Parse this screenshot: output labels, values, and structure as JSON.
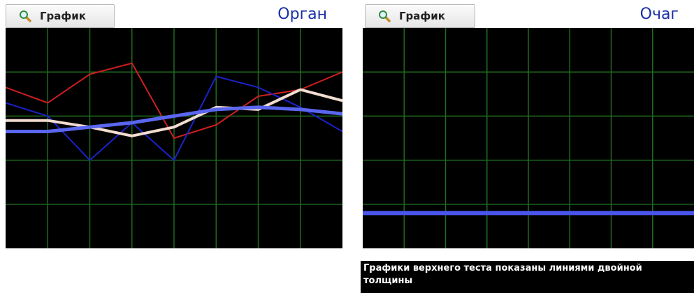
{
  "left_panel": {
    "button_label": "График",
    "title": "Орган"
  },
  "right_panel": {
    "button_label": "График",
    "title": "Очаг"
  },
  "note": "Графики верхнего теста показаны линиями двойной толщины",
  "colors": {
    "background": "#000000",
    "grid": "#1e6b1e",
    "title": "#1a2fa6"
  },
  "chart_data": [
    {
      "type": "line",
      "grid": true,
      "legend": "none",
      "x": [
        0,
        1,
        2,
        3,
        4,
        5,
        6,
        7,
        8
      ],
      "xlim": [
        0,
        8
      ],
      "ylim": [
        0,
        5
      ],
      "series": [
        {
          "color": "#cc1f1f",
          "width": 2,
          "values": [
            3.65,
            3.3,
            3.95,
            4.2,
            2.5,
            2.8,
            3.45,
            3.6,
            4.0
          ]
        },
        {
          "color": "#1a22c8",
          "width": 2,
          "values": [
            3.3,
            3.0,
            2.0,
            2.85,
            2.0,
            3.9,
            3.65,
            3.2,
            2.65
          ]
        },
        {
          "color": "#f2dcd0",
          "width": 4,
          "values": [
            2.9,
            2.9,
            2.75,
            2.55,
            2.75,
            3.2,
            3.15,
            3.6,
            3.35
          ]
        },
        {
          "color": "#5a66ee",
          "width": 5,
          "values": [
            2.65,
            2.65,
            2.75,
            2.85,
            3.0,
            3.15,
            3.2,
            3.15,
            3.05
          ]
        }
      ]
    },
    {
      "type": "line",
      "grid": true,
      "legend": "none",
      "x": [
        0,
        1,
        2,
        3,
        4,
        5,
        6,
        7,
        8
      ],
      "xlim": [
        0,
        8
      ],
      "ylim": [
        0,
        5
      ],
      "series": [
        {
          "color": "#4a55ee",
          "width": 6,
          "values": [
            0.8,
            0.8,
            0.8,
            0.8,
            0.8,
            0.8,
            0.8,
            0.8,
            0.8
          ]
        }
      ]
    }
  ]
}
